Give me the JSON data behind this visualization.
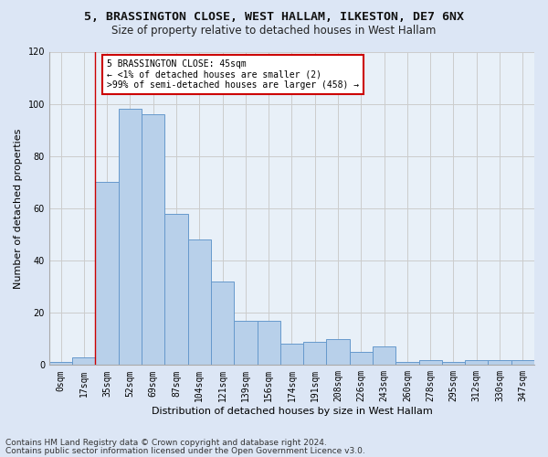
{
  "title_line1": "5, BRASSINGTON CLOSE, WEST HALLAM, ILKESTON, DE7 6NX",
  "title_line2": "Size of property relative to detached houses in West Hallam",
  "xlabel": "Distribution of detached houses by size in West Hallam",
  "ylabel": "Number of detached properties",
  "footnote1": "Contains HM Land Registry data © Crown copyright and database right 2024.",
  "footnote2": "Contains public sector information licensed under the Open Government Licence v3.0.",
  "bar_labels": [
    "0sqm",
    "17sqm",
    "35sqm",
    "52sqm",
    "69sqm",
    "87sqm",
    "104sqm",
    "121sqm",
    "139sqm",
    "156sqm",
    "174sqm",
    "191sqm",
    "208sqm",
    "226sqm",
    "243sqm",
    "260sqm",
    "278sqm",
    "295sqm",
    "312sqm",
    "330sqm",
    "347sqm"
  ],
  "bar_values": [
    1,
    3,
    70,
    98,
    96,
    58,
    48,
    32,
    17,
    17,
    8,
    9,
    10,
    5,
    7,
    1,
    2,
    1,
    2,
    2,
    2
  ],
  "bar_color": "#b8d0ea",
  "bar_edge_color": "#6699cc",
  "annotation_box_text": "5 BRASSINGTON CLOSE: 45sqm\n← <1% of detached houses are smaller (2)\n>99% of semi-detached houses are larger (458) →",
  "annotation_box_color": "#ffffff",
  "annotation_box_edge_color": "#cc0000",
  "vline_x": 1.5,
  "vline_color": "#cc0000",
  "ylim": [
    0,
    120
  ],
  "yticks": [
    0,
    20,
    40,
    60,
    80,
    100,
    120
  ],
  "grid_color": "#cccccc",
  "bg_color": "#dce6f5",
  "plot_bg_color": "#e8f0f8",
  "title_fontsize": 9.5,
  "subtitle_fontsize": 8.5,
  "label_fontsize": 8,
  "tick_fontsize": 7,
  "footnote_fontsize": 6.5
}
